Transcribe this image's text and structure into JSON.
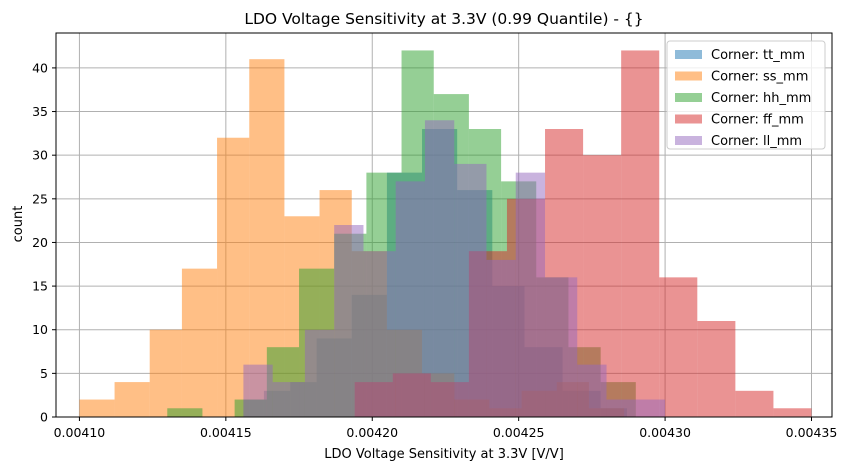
{
  "chart_data": {
    "type": "histogram",
    "title": "LDO Voltage Sensitivity at 3.3V (0.99 Quantile) - {}",
    "xlabel": "LDO Voltage Sensitivity at 3.3V [V/V]",
    "ylabel": "count",
    "xlim": [
      0.004092,
      0.004357
    ],
    "ylim": [
      0,
      44
    ],
    "grid": true,
    "legend_position": "top-right",
    "x_ticks": [
      "0.00410",
      "0.00415",
      "0.00420",
      "0.00425",
      "0.00430",
      "0.00435"
    ],
    "x_tick_values": [
      0.0041,
      0.00415,
      0.0042,
      0.00425,
      0.0043,
      0.00435
    ],
    "y_ticks": [
      0,
      5,
      10,
      15,
      20,
      25,
      30,
      35,
      40
    ],
    "series": [
      {
        "name": "Corner: tt_mm",
        "color": "#1f77b4",
        "bins": [
          [
            0.004156,
            0.004163,
            2
          ],
          [
            0.004163,
            0.004172,
            3
          ],
          [
            0.004172,
            0.004181,
            4
          ],
          [
            0.004181,
            0.004193,
            9
          ],
          [
            0.004193,
            0.004205,
            14
          ],
          [
            0.004205,
            0.004217,
            28
          ],
          [
            0.004217,
            0.004229,
            33
          ],
          [
            0.004229,
            0.004241,
            26
          ],
          [
            0.004241,
            0.004252,
            15
          ],
          [
            0.004252,
            0.004265,
            8
          ],
          [
            0.004265,
            0.004278,
            3
          ],
          [
            0.004278,
            0.004287,
            1
          ]
        ]
      },
      {
        "name": "Corner: ss_mm",
        "color": "#ff7f0e",
        "bins": [
          [
            0.0041,
            0.004112,
            2
          ],
          [
            0.004112,
            0.004124,
            4
          ],
          [
            0.004124,
            0.004135,
            10
          ],
          [
            0.004135,
            0.004147,
            17
          ],
          [
            0.004147,
            0.004158,
            32
          ],
          [
            0.004158,
            0.00417,
            41
          ],
          [
            0.00417,
            0.004182,
            23
          ],
          [
            0.004182,
            0.004193,
            26
          ],
          [
            0.004193,
            0.004205,
            19
          ],
          [
            0.004205,
            0.004217,
            10
          ],
          [
            0.004217,
            0.004228,
            5
          ],
          [
            0.004228,
            0.00424,
            2
          ],
          [
            0.00424,
            0.004251,
            1
          ],
          [
            0.004251,
            0.004263,
            3
          ],
          [
            0.004263,
            0.004274,
            4
          ],
          [
            0.004274,
            0.004286,
            1
          ]
        ]
      },
      {
        "name": "Corner: hh_mm",
        "color": "#2ca02c",
        "bins": [
          [
            0.00413,
            0.004142,
            1
          ],
          [
            0.004153,
            0.004164,
            2
          ],
          [
            0.004164,
            0.004175,
            8
          ],
          [
            0.004175,
            0.004187,
            17
          ],
          [
            0.004187,
            0.004198,
            21
          ],
          [
            0.004198,
            0.00421,
            28
          ],
          [
            0.00421,
            0.004221,
            42
          ],
          [
            0.004221,
            0.004233,
            37
          ],
          [
            0.004233,
            0.004244,
            33
          ],
          [
            0.004244,
            0.004256,
            27
          ],
          [
            0.004256,
            0.004267,
            16
          ],
          [
            0.004267,
            0.004278,
            8
          ],
          [
            0.004278,
            0.00429,
            4
          ]
        ]
      },
      {
        "name": "Corner: ff_mm",
        "color": "#d62728",
        "bins": [
          [
            0.004194,
            0.004207,
            4
          ],
          [
            0.004207,
            0.00422,
            5
          ],
          [
            0.00422,
            0.004233,
            4
          ],
          [
            0.004233,
            0.004246,
            19
          ],
          [
            0.004246,
            0.004259,
            25
          ],
          [
            0.004259,
            0.004272,
            33
          ],
          [
            0.004272,
            0.004285,
            30
          ],
          [
            0.004285,
            0.004298,
            42
          ],
          [
            0.004298,
            0.004311,
            16
          ],
          [
            0.004311,
            0.004324,
            11
          ],
          [
            0.004324,
            0.004337,
            3
          ],
          [
            0.004337,
            0.00435,
            1
          ]
        ]
      },
      {
        "name": "Corner: ll_mm",
        "color": "#9467bd",
        "bins": [
          [
            0.004156,
            0.004166,
            6
          ],
          [
            0.004166,
            0.004177,
            4
          ],
          [
            0.004177,
            0.004187,
            10
          ],
          [
            0.004187,
            0.004197,
            22
          ],
          [
            0.004197,
            0.004208,
            19
          ],
          [
            0.004208,
            0.004218,
            27
          ],
          [
            0.004218,
            0.004228,
            34
          ],
          [
            0.004228,
            0.004239,
            29
          ],
          [
            0.004239,
            0.004249,
            18
          ],
          [
            0.004249,
            0.004259,
            28
          ],
          [
            0.004259,
            0.00427,
            16
          ],
          [
            0.00427,
            0.00428,
            6
          ],
          [
            0.00428,
            0.00429,
            2
          ],
          [
            0.00429,
            0.0043,
            2
          ]
        ]
      }
    ]
  }
}
